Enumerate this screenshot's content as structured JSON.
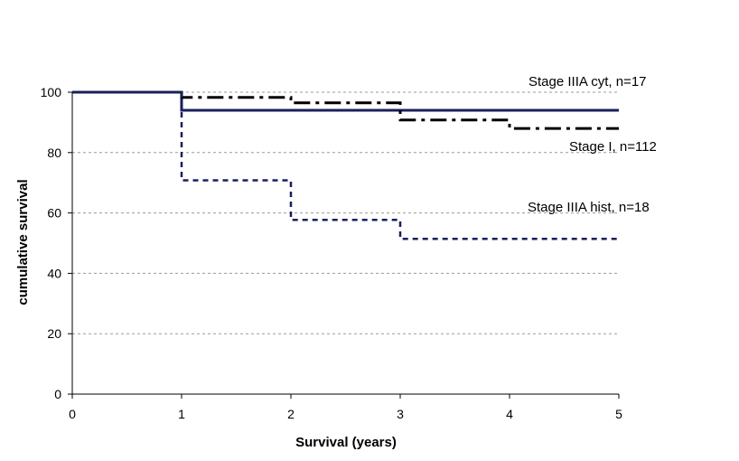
{
  "chart_data": {
    "type": "line",
    "step": true,
    "title": "",
    "xlabel": "Survival (years)",
    "ylabel": "cumulative survival",
    "xlim": [
      0,
      5
    ],
    "ylim": [
      0,
      100
    ],
    "xticks": [
      0,
      1,
      2,
      3,
      4,
      5
    ],
    "yticks": [
      0,
      20,
      40,
      60,
      80,
      100
    ],
    "grid": "horizontal-dashed",
    "legend": "none",
    "annotations": [
      {
        "text": "Stage IIIA cyt, n=17"
      },
      {
        "text": "Stage I, n=112"
      },
      {
        "text": "Stage IIIA hist, n=18"
      }
    ],
    "series": [
      {
        "line_style": "solid",
        "color": "#1a1f5c",
        "x": [
          0,
          1,
          1,
          5
        ],
        "y": [
          100,
          100,
          94,
          94
        ]
      },
      {
        "line_style": "dash-dot",
        "color": "#000000",
        "x": [
          1,
          1,
          2,
          2,
          3,
          3,
          4,
          4,
          5
        ],
        "y": [
          100,
          98.3,
          98.3,
          96.5,
          96.5,
          90.8,
          90.8,
          88,
          88
        ]
      },
      {
        "line_style": "dotted",
        "color": "#1a1f5c",
        "x": [
          1,
          1,
          2,
          2,
          3,
          3,
          5
        ],
        "y": [
          100,
          70.8,
          70.8,
          57.7,
          57.7,
          51.4,
          51.4
        ]
      }
    ]
  }
}
